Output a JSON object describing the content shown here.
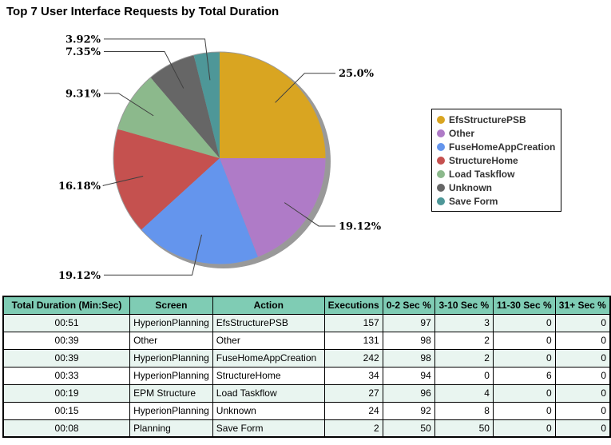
{
  "chart_data": {
    "type": "pie",
    "title": "Top 7 User Interface Requests by Total Duration",
    "legend_position": "right",
    "direction": "clockwise",
    "start_angle_deg": 0,
    "slices": [
      {
        "label": "EfsStructurePSB",
        "pct": 25.0,
        "pct_label": "25.0%",
        "color": "#D9A521"
      },
      {
        "label": "Other",
        "pct": 19.12,
        "pct_label": "19.12%",
        "color": "#AF7BC7"
      },
      {
        "label": "FuseHomeAppCreation",
        "pct": 19.12,
        "pct_label": "19.12%",
        "color": "#6495ED"
      },
      {
        "label": "StructureHome",
        "pct": 16.18,
        "pct_label": "16.18%",
        "color": "#C5514F"
      },
      {
        "label": "Load Taskflow",
        "pct": 9.31,
        "pct_label": "9.31%",
        "color": "#8CB98C"
      },
      {
        "label": "Unknown",
        "pct": 7.35,
        "pct_label": "7.35%",
        "color": "#666666"
      },
      {
        "label": "Save Form",
        "pct": 3.92,
        "pct_label": "3.92%",
        "color": "#4E9798"
      }
    ]
  },
  "table": {
    "columns": [
      "Total Duration (Min:Sec)",
      "Screen",
      "Action",
      "Executions",
      "0-2 Sec %",
      "3-10 Sec %",
      "11-30 Sec %",
      "31+ Sec %"
    ],
    "col_align": [
      "center",
      "left",
      "left",
      "right",
      "right",
      "right",
      "right",
      "right"
    ],
    "rows": [
      [
        "00:51",
        "HyperionPlanning",
        "EfsStructurePSB",
        "157",
        "97",
        "3",
        "0",
        "0"
      ],
      [
        "00:39",
        "Other",
        "Other",
        "131",
        "98",
        "2",
        "0",
        "0"
      ],
      [
        "00:39",
        "HyperionPlanning",
        "FuseHomeAppCreation",
        "242",
        "98",
        "2",
        "0",
        "0"
      ],
      [
        "00:33",
        "HyperionPlanning",
        "StructureHome",
        "34",
        "94",
        "0",
        "6",
        "0"
      ],
      [
        "00:19",
        "EPM Structure",
        "Load Taskflow",
        "27",
        "96",
        "4",
        "0",
        "0"
      ],
      [
        "00:15",
        "HyperionPlanning",
        "Unknown",
        "24",
        "92",
        "8",
        "0",
        "0"
      ],
      [
        "00:08",
        "Planning",
        "Save Form",
        "2",
        "50",
        "50",
        "0",
        "0"
      ]
    ]
  },
  "colors": {
    "table_header_bg": "#7FCCB4",
    "table_row_alt_bg": "#E9F5F0",
    "table_row_bg": "#FFFFFF",
    "table_border": "#000000",
    "pie_shadow": "#999999",
    "leader_line": "#404040"
  }
}
